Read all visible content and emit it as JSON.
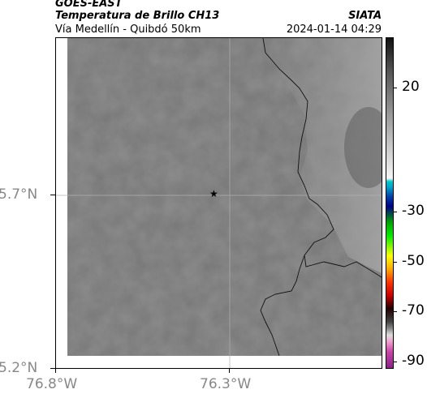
{
  "header": {
    "satellite": "GOES-EAST",
    "product": "Temperatura de Brillo CH13",
    "region": "Vía Medellín - Quibdó 50km",
    "brand": "SIATA",
    "timestamp": "2024-01-14 04:29"
  },
  "map": {
    "lat_labels": [
      "5.7°N",
      "5.2°N"
    ],
    "lon_labels": [
      "76.8°W",
      "76.3°W"
    ],
    "marker_icon": "star-icon",
    "background_color": "#7a7a7a"
  },
  "colorbar": {
    "labels": [
      "20",
      "-30",
      "-50",
      "-70",
      "-90"
    ],
    "values": [
      20,
      -30,
      -50,
      -70,
      -90
    ]
  }
}
